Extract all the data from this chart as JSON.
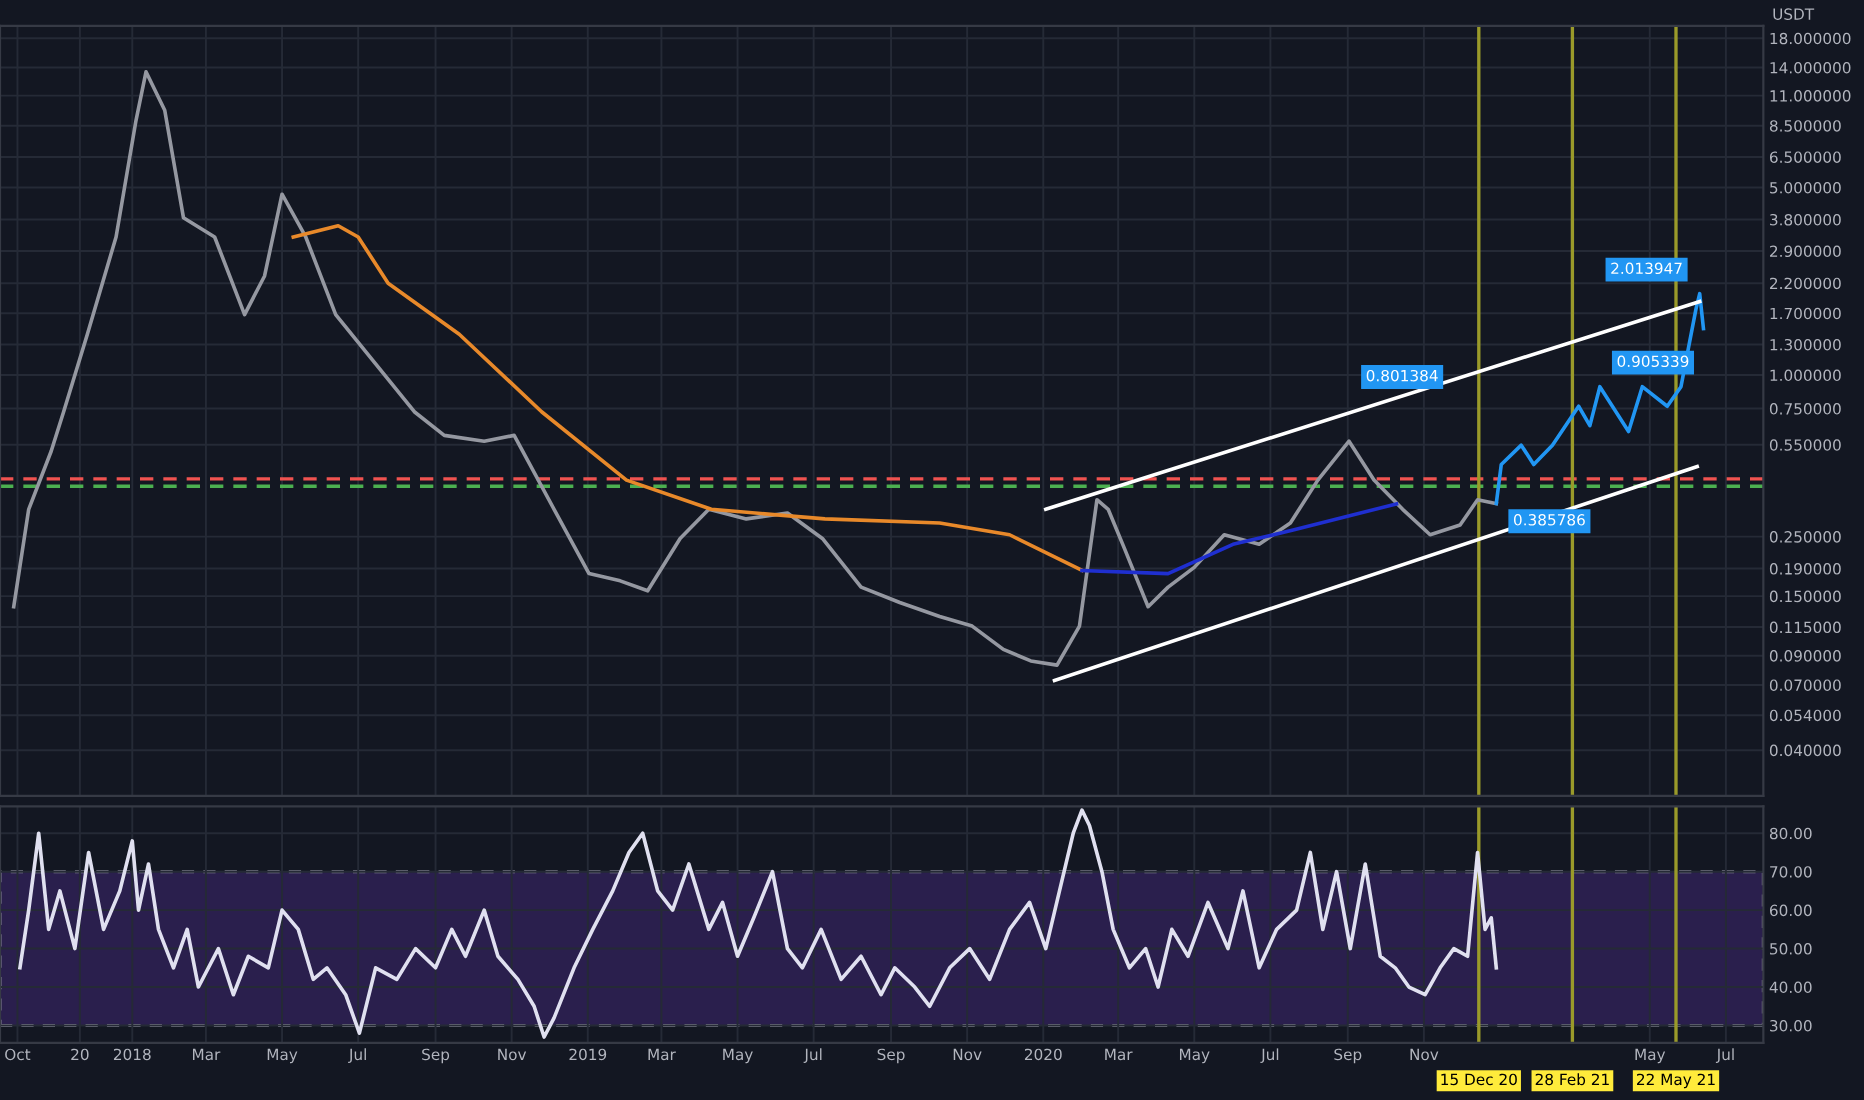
{
  "chart_data": [
    {
      "type": "line",
      "log": true,
      "grid": true,
      "tick_labels": "y",
      "marker": "none",
      "line_style": "solid",
      "ylabel": "USDT",
      "xlim": [
        "2017-09-17",
        "2021-07-31"
      ],
      "ylim": [
        0.027,
        20
      ],
      "yticks": [
        {
          "value": 18,
          "label": "18.000000"
        },
        {
          "value": 14,
          "label": "14.000000"
        },
        {
          "value": 11,
          "label": "11.000000"
        },
        {
          "value": 8.5,
          "label": "8.500000"
        },
        {
          "value": 6.5,
          "label": "6.500000"
        },
        {
          "value": 5,
          "label": "5.000000"
        },
        {
          "value": 3.8,
          "label": "3.800000"
        },
        {
          "value": 2.9,
          "label": "2.900000"
        },
        {
          "value": 2.2,
          "label": "2.200000"
        },
        {
          "value": 1.7,
          "label": "1.700000"
        },
        {
          "value": 1.3,
          "label": "1.300000"
        },
        {
          "value": 1,
          "label": "1.000000"
        },
        {
          "value": 0.75,
          "label": "0.750000"
        },
        {
          "value": 0.55,
          "label": "0.550000"
        },
        {
          "value": 0.25,
          "label": "0.250000"
        },
        {
          "value": 0.19,
          "label": "0.190000"
        },
        {
          "value": 0.15,
          "label": "0.150000"
        },
        {
          "value": 0.115,
          "label": "0.115000"
        },
        {
          "value": 0.09,
          "label": "0.090000"
        },
        {
          "value": 0.07,
          "label": "0.070000"
        },
        {
          "value": 0.054,
          "label": "0.054000"
        },
        {
          "value": 0.04,
          "label": "0.040000"
        }
      ],
      "series": [
        {
          "color": "#9598a1",
          "x": [
            "2017-09-28",
            "2017-10-10",
            "2017-10-28",
            "2017-11-07",
            "2017-11-26",
            "2017-12-19",
            "2018-01-04",
            "2018-01-12",
            "2018-01-27",
            "2018-02-11",
            "2018-03-08",
            "2018-04-01",
            "2018-04-17",
            "2018-05-01",
            "2018-05-20",
            "2018-06-13",
            "2018-07-15",
            "2018-08-15",
            "2018-09-08",
            "2018-10-10",
            "2018-11-03",
            "2018-12-05",
            "2019-01-02",
            "2019-01-27",
            "2019-02-18",
            "2019-03-16",
            "2019-04-08",
            "2019-05-08",
            "2019-06-10",
            "2019-07-08",
            "2019-08-08",
            "2019-09-08",
            "2019-10-10",
            "2019-11-05",
            "2019-11-30",
            "2019-12-22",
            "2020-01-12",
            "2020-01-30",
            "2020-02-13",
            "2020-02-22",
            "2020-03-06",
            "2020-03-25",
            "2020-04-10",
            "2020-05-01",
            "2020-05-25",
            "2020-06-22",
            "2020-07-17",
            "2020-08-08",
            "2020-09-02",
            "2020-09-22",
            "2020-10-15",
            "2020-11-06",
            "2020-11-30",
            "2020-12-14",
            "2020-12-29"
          ],
          "values": [
            0.137,
            0.316,
            0.52,
            0.73,
            1.42,
            3.27,
            8.9,
            13.5,
            9.7,
            3.86,
            3.27,
            1.68,
            2.34,
            4.72,
            3.27,
            1.68,
            1.1,
            0.73,
            0.596,
            0.567,
            0.596,
            0.316,
            0.182,
            0.171,
            0.157,
            0.246,
            0.316,
            0.291,
            0.306,
            0.246,
            0.162,
            0.142,
            0.126,
            0.116,
            0.095,
            0.086,
            0.083,
            0.116,
            0.343,
            0.316,
            0.226,
            0.137,
            0.162,
            0.192,
            0.254,
            0.234,
            0.281,
            0.406,
            0.567,
            0.406,
            0.316,
            0.254,
            0.276,
            0.343,
            0.332
          ]
        },
        {
          "color": "#2196f3",
          "x": [
            "2020-12-29",
            "2021-01-02",
            "2021-01-18",
            "2021-01-28",
            "2021-02-12",
            "2021-03-05",
            "2021-03-14",
            "2021-03-22",
            "2021-04-14",
            "2021-04-25",
            "2021-05-15",
            "2021-05-26",
            "2021-06-07",
            "2021-06-10",
            "2021-06-13"
          ],
          "values": [
            0.332,
            0.464,
            0.548,
            0.464,
            0.548,
            0.765,
            0.648,
            0.905,
            0.616,
            0.905,
            0.765,
            0.905,
            1.76,
            2.01,
            1.49
          ]
        },
        {
          "color": "#e8892a",
          "x": [
            "2018-05-10",
            "2018-06-15",
            "2018-07-01",
            "2018-07-25",
            "2018-09-20",
            "2018-11-25",
            "2019-02-01",
            "2019-04-10",
            "2019-07-10",
            "2019-10-10",
            "2019-12-05",
            "2020-02-01"
          ],
          "values": [
            3.27,
            3.6,
            3.27,
            2.2,
            1.42,
            0.73,
            0.406,
            0.316,
            0.291,
            0.281,
            0.254,
            0.187
          ]
        },
        {
          "color": "#1f2fd0",
          "x": [
            "2020-02-01",
            "2020-04-10",
            "2020-06-01",
            "2020-07-20",
            "2020-10-10"
          ],
          "values": [
            0.187,
            0.182,
            0.234,
            0.265,
            0.331
          ]
        },
        {
          "color": "#ffffff",
          "x": [
            "2020-01-03",
            "2021-06-10"
          ],
          "values": [
            0.316,
            1.88
          ]
        },
        {
          "color": "#ffffff",
          "x": [
            "2020-01-10",
            "2021-06-08"
          ],
          "values": [
            0.0727,
            0.456
          ]
        }
      ],
      "ref_lines": [
        {
          "axis": "y",
          "value": 0.41,
          "color": "#f05350",
          "line_style": "dashed"
        },
        {
          "axis": "y",
          "value": 0.385,
          "color": "#4caf50",
          "line_style": "dashed"
        },
        {
          "axis": "x",
          "value": "2020-12-15",
          "color": "#9a9a2a"
        },
        {
          "axis": "x",
          "value": "2021-02-28",
          "color": "#9a9a2a"
        },
        {
          "axis": "x",
          "value": "2021-05-22",
          "color": "#9a9a2a"
        }
      ],
      "annotations": [
        {
          "text": "0.801384",
          "x": "2020-09-02",
          "y": 0.8
        },
        {
          "text": "0.385786",
          "x": "2020-12-29",
          "y": 0.386
        },
        {
          "text": "0.905339",
          "x": "2021-03-22",
          "y": 0.905
        },
        {
          "text": "2.013947",
          "x": "2021-06-10",
          "y": 2.01
        }
      ]
    },
    {
      "type": "line",
      "grid": true,
      "marker": "none",
      "line_style": "solid",
      "xlim": [
        "2017-09-17",
        "2021-07-31"
      ],
      "ylim": [
        25.5,
        87
      ],
      "yticks": [
        {
          "value": 80,
          "label": "80.00"
        },
        {
          "value": 70,
          "label": "70.00"
        },
        {
          "value": 60,
          "label": "60.00"
        },
        {
          "value": 50,
          "label": "50.00"
        },
        {
          "value": 40,
          "label": "40.00"
        },
        {
          "value": 30,
          "label": "30.00"
        }
      ],
      "xticks": [
        {
          "value": "2017-10-01",
          "label": "Oct"
        },
        {
          "value": "2017-11-20",
          "label": "20"
        },
        {
          "value": "2018-01-01",
          "label": "2018"
        },
        {
          "value": "2018-03-01",
          "label": "Mar"
        },
        {
          "value": "2018-05-01",
          "label": "May"
        },
        {
          "value": "2018-07-01",
          "label": "Jul"
        },
        {
          "value": "2018-09-01",
          "label": "Sep"
        },
        {
          "value": "2018-11-01",
          "label": "Nov"
        },
        {
          "value": "2019-01-01",
          "label": "2019"
        },
        {
          "value": "2019-03-01",
          "label": "Mar"
        },
        {
          "value": "2019-05-01",
          "label": "May"
        },
        {
          "value": "2019-07-01",
          "label": "Jul"
        },
        {
          "value": "2019-09-01",
          "label": "Sep"
        },
        {
          "value": "2019-11-01",
          "label": "Nov"
        },
        {
          "value": "2020-01-01",
          "label": "2020"
        },
        {
          "value": "2020-03-01",
          "label": "Mar"
        },
        {
          "value": "2020-05-01",
          "label": "May"
        },
        {
          "value": "2020-07-01",
          "label": "Jul"
        },
        {
          "value": "2020-09-01",
          "label": "Sep"
        },
        {
          "value": "2020-11-01",
          "label": "Nov"
        },
        {
          "value": "2021-05-01",
          "label": "May"
        },
        {
          "value": "2021-07-01",
          "label": "Jul"
        }
      ],
      "series": [
        {
          "color": "#e0e0f0",
          "x": [
            "2017-10-03",
            "2017-10-10",
            "2017-10-18",
            "2017-10-26",
            "2017-11-04",
            "2017-11-16",
            "2017-11-27",
            "2017-12-09",
            "2017-12-22",
            "2018-01-01",
            "2018-01-06",
            "2018-01-14",
            "2018-01-22",
            "2018-02-03",
            "2018-02-14",
            "2018-02-23",
            "2018-03-11",
            "2018-03-23",
            "2018-04-04",
            "2018-04-20",
            "2018-05-01",
            "2018-05-14",
            "2018-05-26",
            "2018-06-06",
            "2018-06-21",
            "2018-07-02",
            "2018-07-15",
            "2018-08-01",
            "2018-08-16",
            "2018-09-01",
            "2018-09-14",
            "2018-09-25",
            "2018-10-10",
            "2018-10-21",
            "2018-11-06",
            "2018-11-19",
            "2018-11-27",
            "2018-12-05",
            "2018-12-21",
            "2019-01-05",
            "2019-01-21",
            "2019-02-03",
            "2019-02-14",
            "2019-02-26",
            "2019-03-10",
            "2019-03-23",
            "2019-04-08",
            "2019-04-19",
            "2019-05-01",
            "2019-05-14",
            "2019-05-29",
            "2019-06-10",
            "2019-06-22",
            "2019-07-07",
            "2019-07-23",
            "2019-08-08",
            "2019-08-24",
            "2019-09-04",
            "2019-09-20",
            "2019-10-02",
            "2019-10-18",
            "2019-11-03",
            "2019-11-19",
            "2019-12-05",
            "2019-12-21",
            "2020-01-03",
            "2020-01-14",
            "2020-01-25",
            "2020-02-01",
            "2020-02-07",
            "2020-02-17",
            "2020-02-26",
            "2020-03-10",
            "2020-03-23",
            "2020-04-02",
            "2020-04-13",
            "2020-04-26",
            "2020-05-12",
            "2020-05-28",
            "2020-06-09",
            "2020-06-22",
            "2020-07-06",
            "2020-07-22",
            "2020-08-02",
            "2020-08-12",
            "2020-08-23",
            "2020-09-03",
            "2020-09-15",
            "2020-09-27",
            "2020-10-09",
            "2020-10-20",
            "2020-11-02",
            "2020-11-14",
            "2020-11-25",
            "2020-12-06",
            "2020-12-14",
            "2020-12-20",
            "2020-12-25",
            "2020-12-29"
          ],
          "values": [
            45,
            60,
            80,
            55,
            65,
            50,
            75,
            55,
            65,
            78,
            60,
            72,
            55,
            45,
            55,
            40,
            50,
            38,
            48,
            45,
            60,
            55,
            42,
            45,
            38,
            28,
            45,
            42,
            50,
            45,
            55,
            48,
            60,
            48,
            42,
            35,
            27,
            32,
            45,
            55,
            65,
            75,
            80,
            65,
            60,
            72,
            55,
            62,
            48,
            58,
            70,
            50,
            45,
            55,
            42,
            48,
            38,
            45,
            40,
            35,
            45,
            50,
            42,
            55,
            62,
            50,
            65,
            80,
            86,
            82,
            70,
            55,
            45,
            50,
            40,
            55,
            48,
            62,
            50,
            65,
            45,
            55,
            60,
            75,
            55,
            70,
            50,
            72,
            48,
            45,
            40,
            38,
            45,
            50,
            48,
            75,
            55,
            58,
            45
          ]
        }
      ],
      "bands": [
        {
          "axis": "y",
          "from": 30,
          "to": 70,
          "color": "#2a1f4d"
        }
      ],
      "ref_lines": [
        {
          "axis": "x",
          "value": "2020-12-15",
          "label": "15 Dec 20",
          "color": "#9a9a2a"
        },
        {
          "axis": "x",
          "value": "2021-02-28",
          "label": "28 Feb 21",
          "color": "#9a9a2a"
        },
        {
          "axis": "x",
          "value": "2021-05-22",
          "label": "22 May 21",
          "color": "#9a9a2a"
        }
      ]
    }
  ]
}
